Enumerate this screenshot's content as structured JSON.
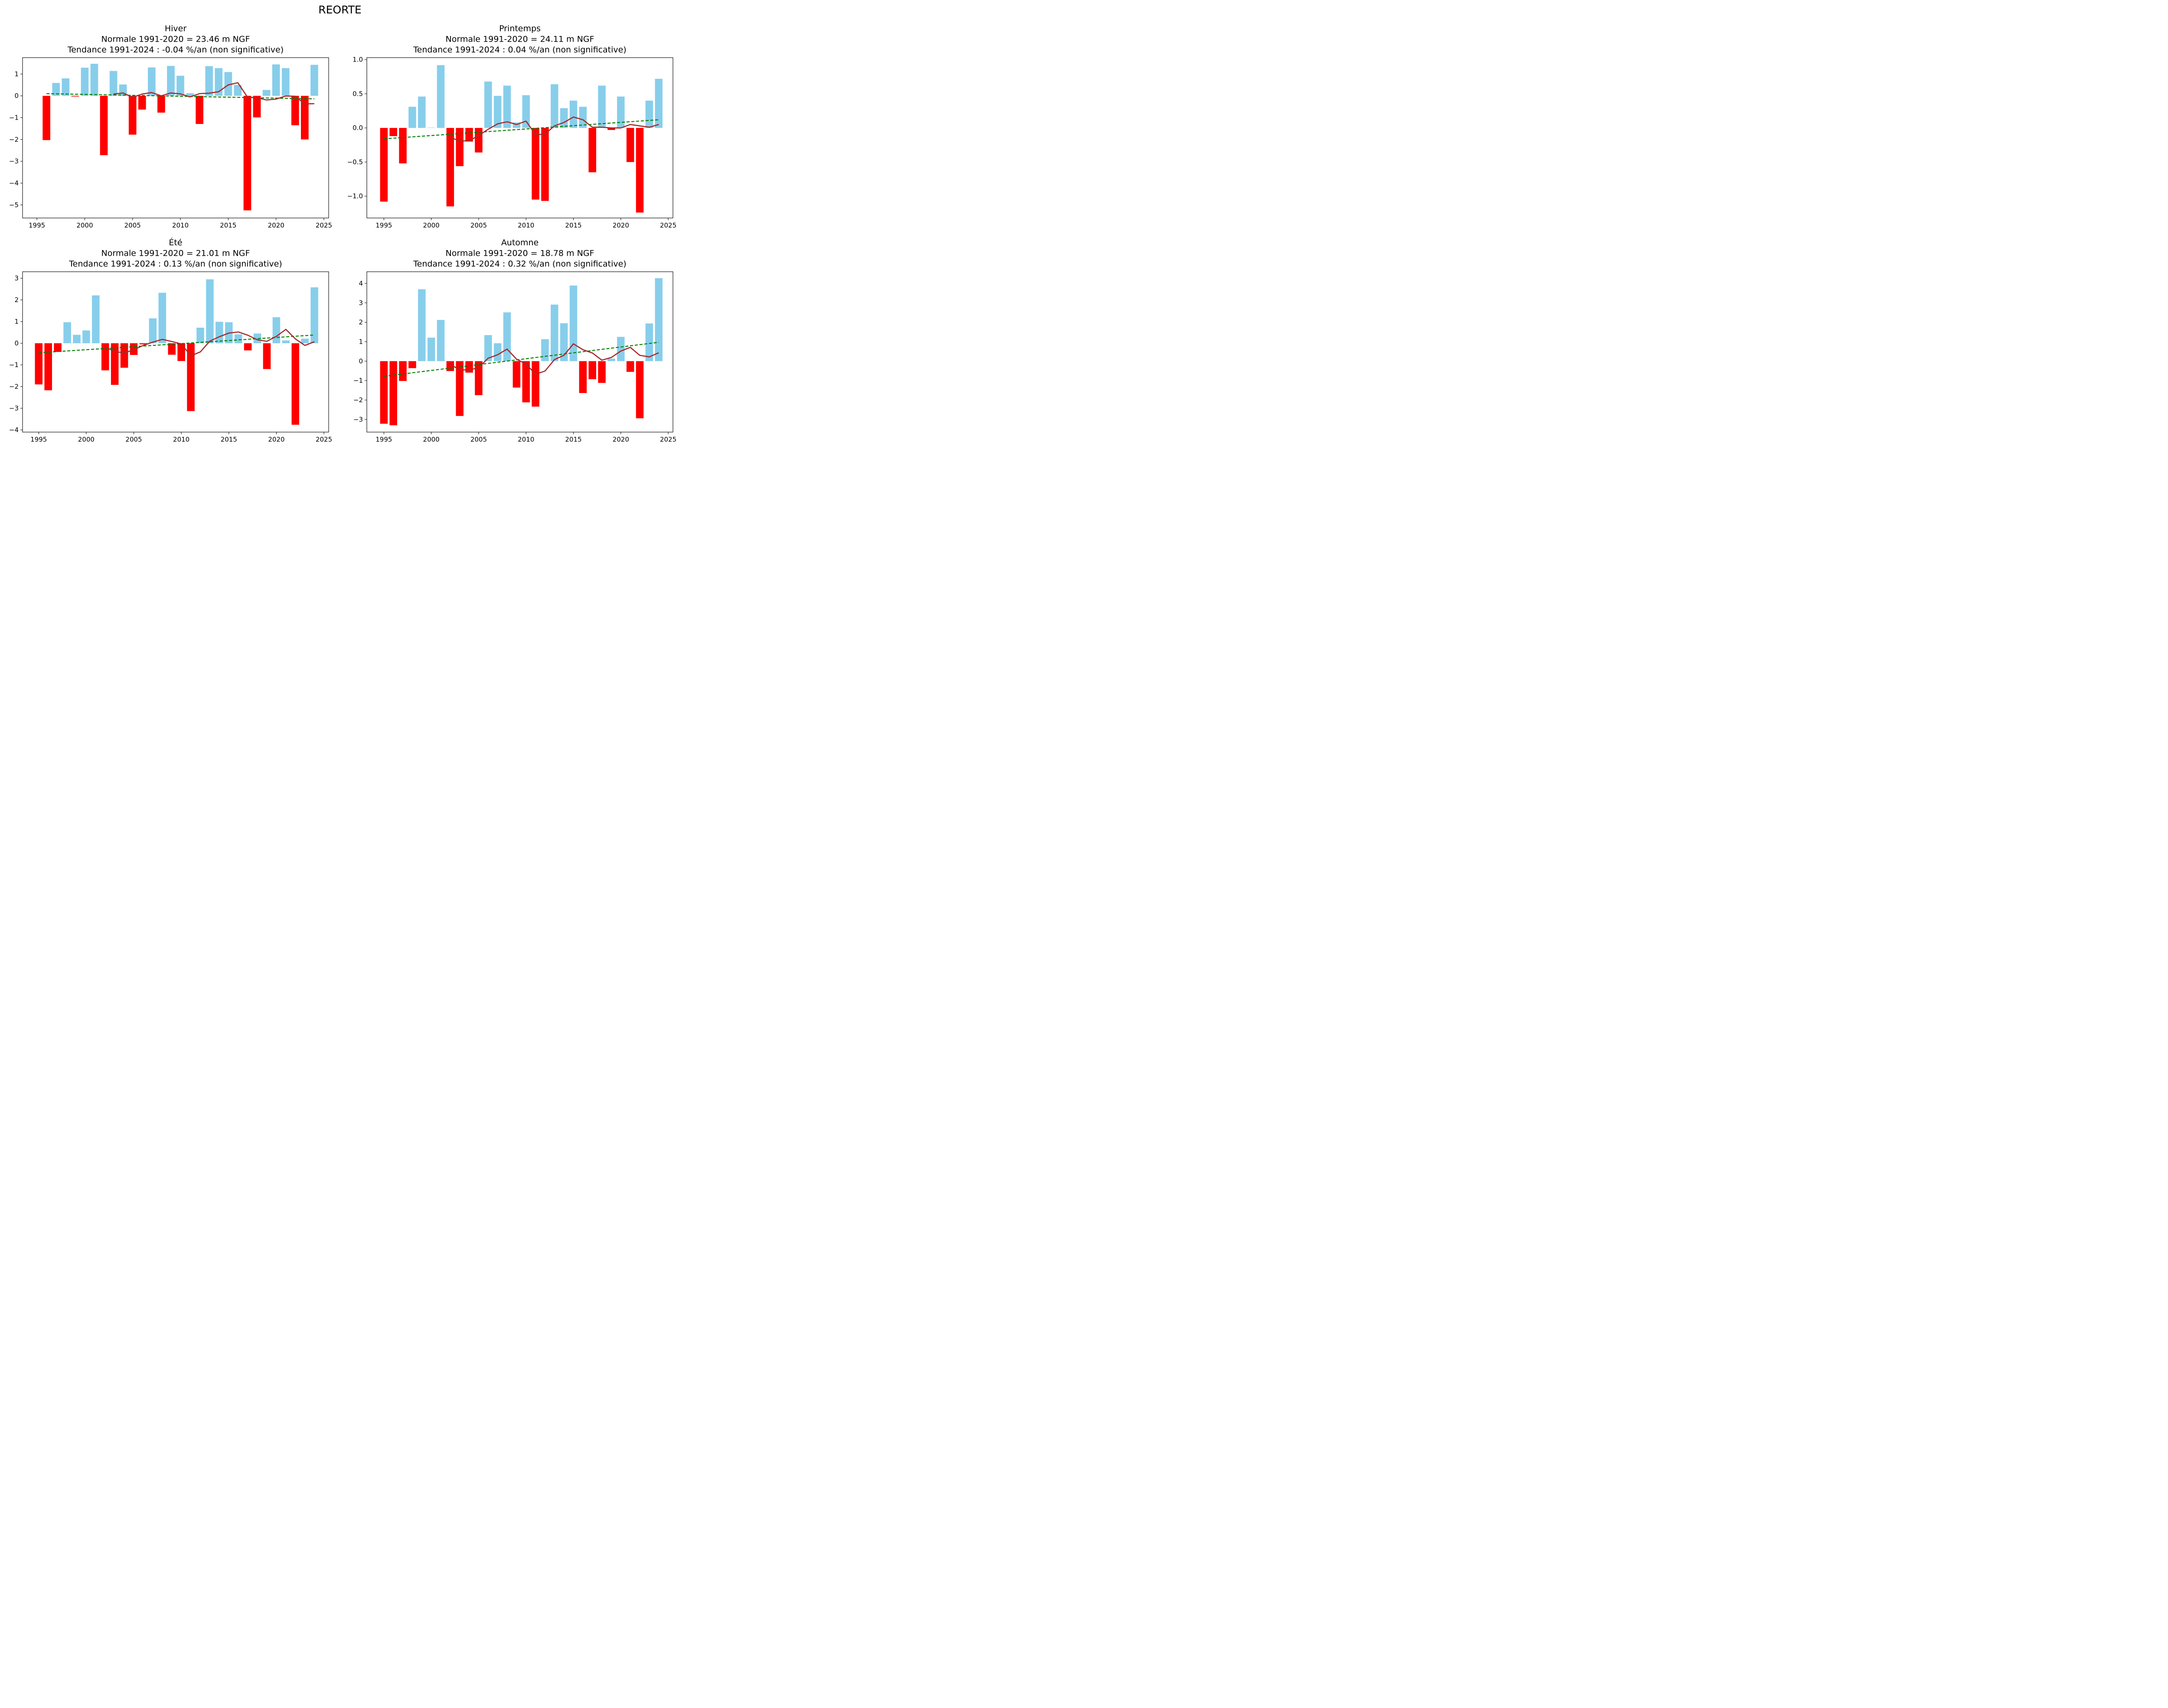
{
  "suptitle": "REORTE",
  "colors": {
    "positive": "#87CEEB",
    "negative": "#FF0000",
    "moving_avg": "#A52A2A",
    "trend": "#008000"
  },
  "chart_data": [
    {
      "type": "bar",
      "title": [
        "Hiver",
        "Normale 1991-2020 = 23.46 m NGF",
        "Tendance 1991-2024 : -0.04 %/an (non significative)"
      ],
      "xlabel": "",
      "ylabel": "",
      "xlim": [
        1993.5,
        2025.5
      ],
      "ylim": [
        -5.6,
        1.75
      ],
      "xticks": [
        1995,
        2000,
        2005,
        2010,
        2015,
        2020,
        2025
      ],
      "yticks": [
        1,
        0,
        -1,
        -2,
        -3,
        -4,
        -5
      ],
      "x": [
        1996,
        1997,
        1998,
        1999,
        2000,
        2001,
        2002,
        2003,
        2004,
        2005,
        2006,
        2007,
        2008,
        2009,
        2010,
        2011,
        2012,
        2013,
        2014,
        2015,
        2016,
        2017,
        2018,
        2019,
        2020,
        2021,
        2022,
        2023,
        2024
      ],
      "values": [
        -2.03,
        0.59,
        0.8,
        -0.03,
        1.29,
        1.47,
        -2.72,
        1.14,
        0.52,
        -1.78,
        -0.63,
        1.3,
        -0.77,
        1.37,
        0.92,
        0.12,
        -1.29,
        1.36,
        1.27,
        1.09,
        0.5,
        -5.25,
        -0.99,
        0.27,
        1.44,
        1.27,
        -1.35,
        -2.0,
        1.42
      ],
      "moving_avg": {
        "x": [
          2003,
          2004,
          2005,
          2006,
          2007,
          2008,
          2009,
          2010,
          2011,
          2012,
          2013,
          2014,
          2015,
          2016,
          2017,
          2018,
          2019,
          2020,
          2021,
          2022,
          2023,
          2024
        ],
        "values": [
          0.08,
          0.13,
          -0.07,
          0.08,
          0.15,
          0.0,
          0.13,
          0.09,
          -0.05,
          0.1,
          0.12,
          0.19,
          0.5,
          0.6,
          -0.05,
          -0.09,
          -0.19,
          -0.15,
          -0.01,
          -0.02,
          -0.37,
          -0.36
        ]
      },
      "trend": {
        "x": [
          1996,
          2024
        ],
        "values": [
          0.1,
          -0.14
        ]
      }
    },
    {
      "type": "bar",
      "title": [
        "Printemps",
        "Normale 1991-2020 = 24.11 m NGF",
        "Tendance 1991-2024 : 0.04 %/an (non significative)"
      ],
      "xlabel": "",
      "ylabel": "",
      "xlim": [
        1993.2,
        2025.5
      ],
      "ylim": [
        -1.32,
        1.03
      ],
      "xticks": [
        1995,
        2000,
        2005,
        2010,
        2015,
        2020,
        2025
      ],
      "yticks": [
        "1.0",
        "0.5",
        "0.0",
        "−0.5",
        "−1.0"
      ],
      "ytick_values": [
        1.0,
        0.5,
        0.0,
        -0.5,
        -1.0
      ],
      "x": [
        1995,
        1996,
        1997,
        1998,
        1999,
        2000,
        2001,
        2002,
        2003,
        2004,
        2005,
        2006,
        2007,
        2008,
        2009,
        2010,
        2011,
        2012,
        2013,
        2014,
        2015,
        2016,
        2017,
        2018,
        2019,
        2020,
        2021,
        2022,
        2023,
        2024
      ],
      "values": [
        -1.08,
        -0.12,
        -0.52,
        0.31,
        0.46,
        0.005,
        0.92,
        -1.15,
        -0.56,
        -0.2,
        -0.36,
        0.68,
        0.47,
        0.62,
        0.08,
        0.48,
        -1.05,
        -1.07,
        0.64,
        0.29,
        0.4,
        0.31,
        -0.65,
        0.62,
        -0.03,
        0.46,
        -0.5,
        -1.24,
        0.4,
        0.72
      ],
      "moving_avg": {
        "x": [
          2002,
          2003,
          2004,
          2005,
          2006,
          2007,
          2008,
          2009,
          2010,
          2011,
          2012,
          2013,
          2014,
          2015,
          2016,
          2017,
          2018,
          2019,
          2020,
          2021,
          2022,
          2023,
          2024
        ],
        "values": [
          -0.14,
          -0.19,
          -0.19,
          -0.11,
          -0.02,
          0.06,
          0.09,
          0.05,
          0.1,
          -0.1,
          -0.09,
          0.03,
          0.08,
          0.16,
          0.12,
          0.01,
          0.01,
          0.0,
          0.0,
          0.05,
          0.03,
          0.01,
          0.05
        ]
      },
      "trend": {
        "x": [
          1995,
          2024
        ],
        "values": [
          -0.16,
          0.12
        ]
      }
    },
    {
      "type": "bar",
      "title": [
        "Été",
        "Normale 1991-2020 = 21.01 m NGF",
        "Tendance 1991-2024 : 0.13 %/an (non significative)"
      ],
      "xlabel": "",
      "ylabel": "",
      "xlim": [
        1993.3,
        2025.5
      ],
      "ylim": [
        -4.1,
        3.3
      ],
      "xticks": [
        1995,
        2000,
        2005,
        2010,
        2015,
        2020,
        2025
      ],
      "yticks": [
        3,
        2,
        1,
        0,
        -1,
        -2,
        -3,
        -4
      ],
      "x": [
        1995,
        1996,
        1997,
        1998,
        1999,
        2000,
        2001,
        2002,
        2003,
        2004,
        2005,
        2006,
        2007,
        2008,
        2009,
        2010,
        2011,
        2012,
        2013,
        2014,
        2015,
        2016,
        2017,
        2018,
        2019,
        2020,
        2021,
        2022,
        2023,
        2024
      ],
      "values": [
        -1.9,
        -2.17,
        -0.4,
        0.97,
        0.39,
        0.59,
        2.21,
        -1.25,
        -1.92,
        -1.13,
        -0.54,
        -0.05,
        1.15,
        2.33,
        -0.53,
        -0.82,
        -3.13,
        0.72,
        2.95,
        0.99,
        0.97,
        0.41,
        -0.33,
        0.45,
        -1.19,
        1.2,
        0.13,
        -3.76,
        0.21,
        2.58
      ],
      "moving_avg": {
        "x": [
          2002,
          2003,
          2004,
          2005,
          2006,
          2007,
          2008,
          2009,
          2010,
          2011,
          2012,
          2013,
          2014,
          2015,
          2016,
          2017,
          2018,
          2019,
          2020,
          2021,
          2022,
          2023,
          2024
        ],
        "values": [
          -0.18,
          -0.38,
          -0.45,
          -0.3,
          -0.1,
          0.05,
          0.18,
          0.08,
          -0.03,
          -0.58,
          -0.4,
          0.1,
          0.3,
          0.47,
          0.52,
          0.37,
          0.16,
          0.09,
          0.32,
          0.64,
          0.2,
          -0.1,
          0.07
        ]
      },
      "trend": {
        "x": [
          1995,
          2024
        ],
        "values": [
          -0.44,
          0.38
        ]
      }
    },
    {
      "type": "bar",
      "title": [
        "Automne",
        "Normale 1991-2020 = 18.78 m NGF",
        "Tendance 1991-2024 : 0.32 %/an (non significative)"
      ],
      "xlabel": "",
      "ylabel": "",
      "xlim": [
        1993.2,
        2025.5
      ],
      "ylim": [
        -3.65,
        4.6
      ],
      "xticks": [
        1995,
        2000,
        2005,
        2010,
        2015,
        2020,
        2025
      ],
      "yticks": [
        4,
        3,
        2,
        1,
        0,
        -1,
        -2,
        -3
      ],
      "x": [
        1995,
        1996,
        1997,
        1998,
        1999,
        2000,
        2001,
        2002,
        2003,
        2004,
        2005,
        2006,
        2007,
        2008,
        2009,
        2010,
        2011,
        2012,
        2013,
        2014,
        2015,
        2016,
        2017,
        2018,
        2019,
        2020,
        2021,
        2022,
        2023,
        2024
      ],
      "values": [
        -3.22,
        -3.3,
        -1.02,
        -0.36,
        3.7,
        1.21,
        2.12,
        -0.51,
        -2.82,
        -0.59,
        -1.75,
        1.34,
        0.92,
        2.51,
        -1.36,
        -2.12,
        -2.34,
        1.13,
        2.91,
        1.95,
        3.89,
        -1.64,
        -0.93,
        -1.12,
        0.13,
        1.25,
        -0.55,
        -2.94,
        1.94,
        4.27
      ],
      "moving_avg": {
        "x": [
          2002,
          2003,
          2004,
          2005,
          2006,
          2007,
          2008,
          2009,
          2010,
          2011,
          2012,
          2013,
          2014,
          2015,
          2016,
          2017,
          2018,
          2019,
          2020,
          2021,
          2022,
          2023,
          2024
        ],
        "values": [
          -0.17,
          -0.44,
          -0.46,
          -0.33,
          0.15,
          0.33,
          0.62,
          0.1,
          -0.15,
          -0.67,
          -0.51,
          0.08,
          0.3,
          0.89,
          0.59,
          0.42,
          0.05,
          0.19,
          0.52,
          0.71,
          0.3,
          0.22,
          0.43
        ]
      },
      "trend": {
        "x": [
          1995,
          2024
        ],
        "values": [
          -0.78,
          0.97
        ]
      }
    }
  ]
}
